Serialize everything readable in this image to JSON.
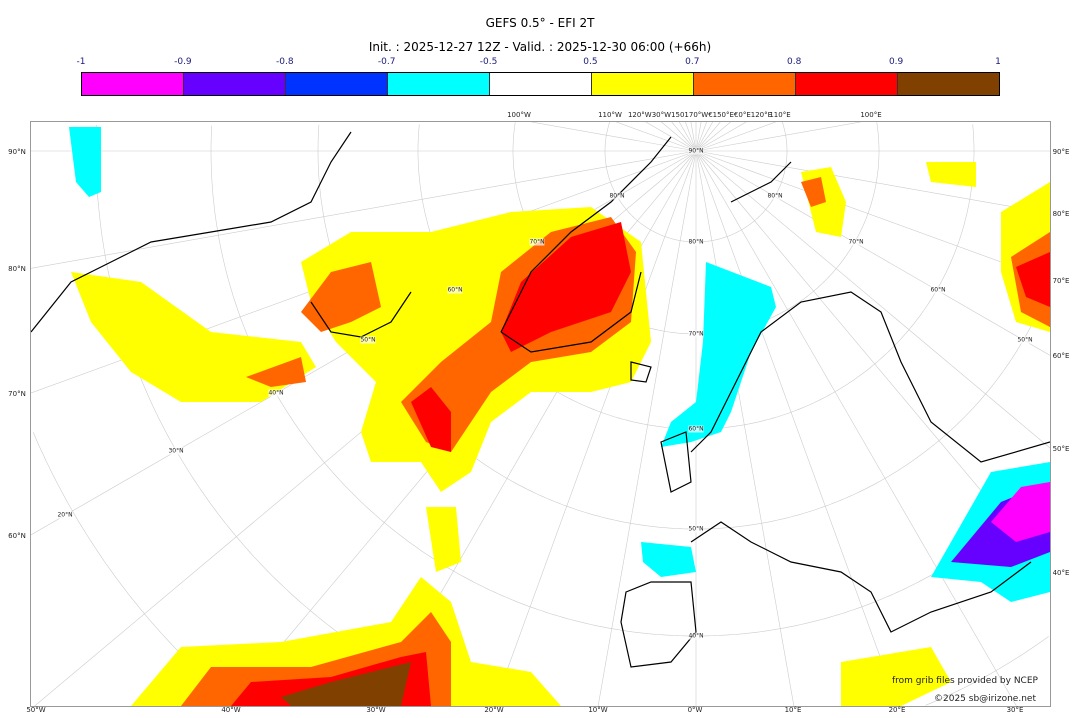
{
  "title": "GEFS 0.5° - EFI 2T",
  "subtitle": "Init. : 2025-12-27 12Z - Valid. : 2025-12-30 06:00 (+66h)",
  "colorbar": {
    "tick_labels": [
      "-1",
      "-0.9",
      "-0.8",
      "-0.7",
      "-0.5",
      "0.5",
      "0.7",
      "0.8",
      "0.9",
      "1"
    ],
    "colors": [
      "#ff00ff",
      "#6600ff",
      "#0033ff",
      "#00ffff",
      "#ffffff",
      "#ffff00",
      "#ff6600",
      "#ff0000",
      "#804000"
    ]
  },
  "map": {
    "left_labels": [
      "90°N",
      "80°N",
      "70°N",
      "60°N"
    ],
    "right_labels": [
      "90°E",
      "80°E",
      "70°E",
      "60°E",
      "50°E",
      "40°E"
    ],
    "bottom_labels": [
      "50°W",
      "40°W",
      "30°W",
      "20°W",
      "10°W",
      "0°W",
      "10°E",
      "20°E",
      "30°E"
    ],
    "top_labels": [
      "100°W",
      "110°W",
      "120°W30°W150170°W€150°E€0°E120°E",
      "110°E",
      "100°E"
    ],
    "inner_labels": [
      "90°N",
      "80°N",
      "70°N",
      "60°N",
      "50°N",
      "40°N",
      "30°N",
      "20°N",
      "80°N",
      "70°N",
      "60°N",
      "50°N",
      "40°N",
      "80°N",
      "70°N",
      "60°N",
      "50°N"
    ]
  },
  "credits": {
    "source": "from grib files provided by NCEP",
    "copyright": "©2025 sb@irizone.net"
  }
}
